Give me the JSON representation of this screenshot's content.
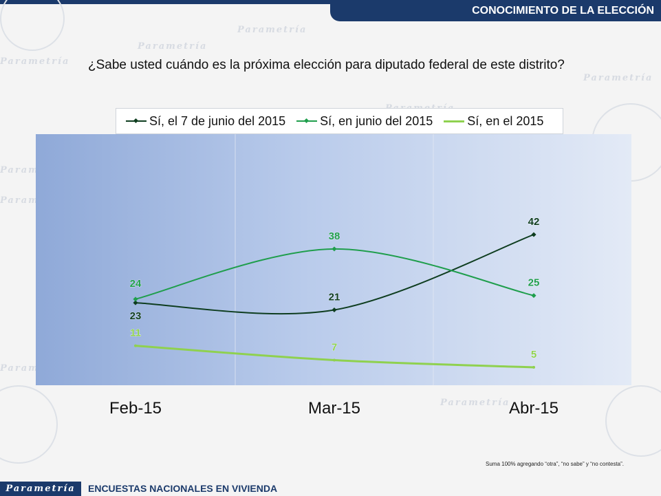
{
  "header": {
    "section_title": "CONOCIMIENTO DE LA ELECCIÓN"
  },
  "question": "¿Sabe usted cuándo es la próxima elección para diputado federal de este distrito?",
  "chart_data": {
    "type": "line",
    "categories": [
      "Feb-15",
      "Mar-15",
      "Abr-15"
    ],
    "series": [
      {
        "name": "Sí, el 7 de junio del 2015",
        "values": [
          23,
          21,
          42
        ],
        "color": "#0e3d1f"
      },
      {
        "name": "Sí, en junio del 2015",
        "values": [
          24,
          38,
          25
        ],
        "color": "#1f9e4c"
      },
      {
        "name": "Sí, en el 2015",
        "values": [
          11,
          7,
          5
        ],
        "color": "#8fd14f"
      }
    ],
    "ylim": [
      0,
      70
    ],
    "legend_position": "top",
    "grid": false,
    "title": "",
    "xlabel": "",
    "ylabel": ""
  },
  "footnote": "Suma 100% agregando “otra”, “no sabe” y “no contesta”.",
  "footer": {
    "brand": "Parametría",
    "label": "ENCUESTAS NACIONALES  EN VIVIENDA"
  }
}
